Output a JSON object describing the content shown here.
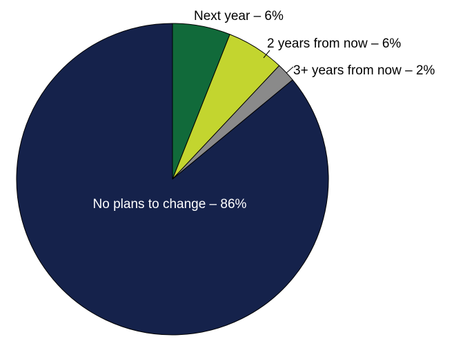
{
  "chart_data": {
    "type": "pie",
    "title": "",
    "slices": [
      {
        "label": "Next year",
        "value": 6,
        "label_text": "Next year – 6%",
        "color": "#116a3a"
      },
      {
        "label": "2 years from now",
        "value": 6,
        "label_text": "2 years from now – 6%",
        "color": "#c3d52f"
      },
      {
        "label": "3+ years from now",
        "value": 2,
        "label_text": "3+ years from now – 2%",
        "color": "#8a8a8a"
      },
      {
        "label": "No plans to change",
        "value": 86,
        "label_text": "No plans to change – 86%",
        "color": "#15224b"
      }
    ],
    "start_angle_deg": 0,
    "direction": "clockwise",
    "edge_color": "#000000",
    "inside_label_color": "#ffffff",
    "outside_label_color": "#000000"
  }
}
